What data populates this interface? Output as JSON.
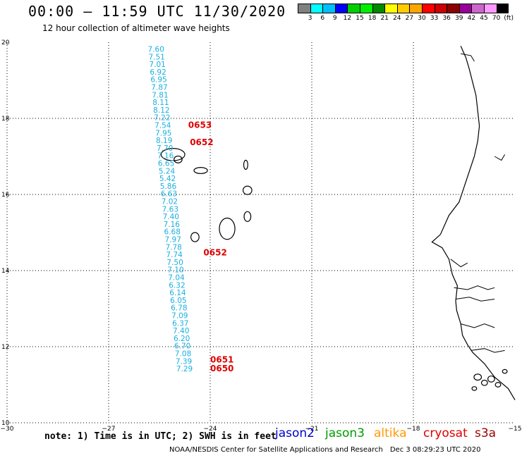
{
  "header": {
    "title": "00:00 – 11:59 UTC 11/30/2020",
    "subtitle": "12 hour collection of altimeter wave heights"
  },
  "colorbar": {
    "colors": [
      "#808080",
      "#00ffff",
      "#00bfff",
      "#0000ff",
      "#00d000",
      "#00ee00",
      "#008800",
      "#ffff00",
      "#ffcc00",
      "#ffa500",
      "#ff0000",
      "#cc0000",
      "#8b0000",
      "#990099",
      "#cc66cc",
      "#ff99ff",
      "#000000"
    ],
    "labels": [
      "3",
      "6",
      "9",
      "12",
      "15",
      "18",
      "21",
      "24",
      "27",
      "30",
      "33",
      "36",
      "39",
      "42",
      "45",
      "70",
      "(ft)"
    ]
  },
  "map": {
    "lon_ticks": [
      "−30",
      "−27",
      "−24",
      "−21",
      "−18",
      "−15"
    ],
    "lat_ticks": [
      "10",
      "12",
      "14",
      "16",
      "18",
      "20"
    ],
    "lon_range": [
      -30,
      -15
    ],
    "lat_range": [
      10,
      20
    ],
    "swh_values": [
      {
        "v": "7.60",
        "lon": -25.6,
        "lat": 19.75
      },
      {
        "v": "7.51",
        "lon": -25.58,
        "lat": 19.55
      },
      {
        "v": "7.01",
        "lon": -25.56,
        "lat": 19.35
      },
      {
        "v": "6.92",
        "lon": -25.54,
        "lat": 19.15
      },
      {
        "v": "6.95",
        "lon": -25.52,
        "lat": 18.95
      },
      {
        "v": "7.87",
        "lon": -25.5,
        "lat": 18.75
      },
      {
        "v": "7.81",
        "lon": -25.48,
        "lat": 18.55
      },
      {
        "v": "8.11",
        "lon": -25.46,
        "lat": 18.35
      },
      {
        "v": "8.12",
        "lon": -25.44,
        "lat": 18.15
      },
      {
        "v": "7.22",
        "lon": -25.42,
        "lat": 17.95
      },
      {
        "v": "7.54",
        "lon": -25.4,
        "lat": 17.75
      },
      {
        "v": "7.95",
        "lon": -25.38,
        "lat": 17.55
      },
      {
        "v": "8.19",
        "lon": -25.36,
        "lat": 17.35
      },
      {
        "v": "7.70",
        "lon": -25.34,
        "lat": 17.15
      },
      {
        "v": "7.16",
        "lon": -25.32,
        "lat": 16.95
      },
      {
        "v": "6.65",
        "lon": -25.3,
        "lat": 16.75
      },
      {
        "v": "5.24",
        "lon": -25.28,
        "lat": 16.55
      },
      {
        "v": "5.42",
        "lon": -25.26,
        "lat": 16.35
      },
      {
        "v": "5.86",
        "lon": -25.24,
        "lat": 16.15
      },
      {
        "v": "6.63",
        "lon": -25.22,
        "lat": 15.95
      },
      {
        "v": "7.02",
        "lon": -25.2,
        "lat": 15.75
      },
      {
        "v": "7.63",
        "lon": -25.18,
        "lat": 15.55
      },
      {
        "v": "7.40",
        "lon": -25.16,
        "lat": 15.35
      },
      {
        "v": "7.16",
        "lon": -25.14,
        "lat": 15.15
      },
      {
        "v": "6.68",
        "lon": -25.12,
        "lat": 14.95
      },
      {
        "v": "7.97",
        "lon": -25.1,
        "lat": 14.75
      },
      {
        "v": "7.78",
        "lon": -25.08,
        "lat": 14.55
      },
      {
        "v": "7.74",
        "lon": -25.06,
        "lat": 14.35
      },
      {
        "v": "7.50",
        "lon": -25.04,
        "lat": 14.15
      },
      {
        "v": "7.10",
        "lon": -25.02,
        "lat": 13.95
      },
      {
        "v": "7.04",
        "lon": -25.0,
        "lat": 13.75
      },
      {
        "v": "6.32",
        "lon": -24.98,
        "lat": 13.55
      },
      {
        "v": "6.14",
        "lon": -24.96,
        "lat": 13.35
      },
      {
        "v": "6.05",
        "lon": -24.94,
        "lat": 13.15
      },
      {
        "v": "6.78",
        "lon": -24.92,
        "lat": 12.95
      },
      {
        "v": "7.09",
        "lon": -24.9,
        "lat": 12.75
      },
      {
        "v": "6.37",
        "lon": -24.88,
        "lat": 12.55
      },
      {
        "v": "7.40",
        "lon": -24.86,
        "lat": 12.35
      },
      {
        "v": "6.20",
        "lon": -24.84,
        "lat": 12.15
      },
      {
        "v": "6.70",
        "lon": -24.82,
        "lat": 11.95
      },
      {
        "v": "7.08",
        "lon": -24.8,
        "lat": 11.75
      },
      {
        "v": "7.39",
        "lon": -24.78,
        "lat": 11.55
      },
      {
        "v": "7.29",
        "lon": -24.76,
        "lat": 11.35
      }
    ],
    "time_labels": [
      {
        "t": "0653",
        "lon": -24.65,
        "lat": 17.75
      },
      {
        "t": "0652",
        "lon": -24.6,
        "lat": 17.3
      },
      {
        "t": "0652",
        "lon": -24.2,
        "lat": 14.4
      },
      {
        "t": "0651",
        "lon": -24.0,
        "lat": 11.58
      },
      {
        "t": "0650",
        "lon": -24.0,
        "lat": 11.35
      }
    ],
    "swh_color": "#1ab0e0",
    "time_color": "#dd0000"
  },
  "note": "note: 1) Time is in UTC; 2) SWH is in feet",
  "legend": [
    {
      "label": "jason2",
      "color": "#0000cc"
    },
    {
      "label": "jason3",
      "color": "#009900"
    },
    {
      "label": "altika",
      "color": "#ff9900"
    },
    {
      "label": "cryosat",
      "color": "#dd0000"
    },
    {
      "label": "s3a",
      "color": "#990000"
    }
  ],
  "footer": {
    "org": "NOAA/NESDIS Center for Satellite Applications and Research",
    "timestamp": "Dec  3 08:29:23 UTC 2020"
  }
}
